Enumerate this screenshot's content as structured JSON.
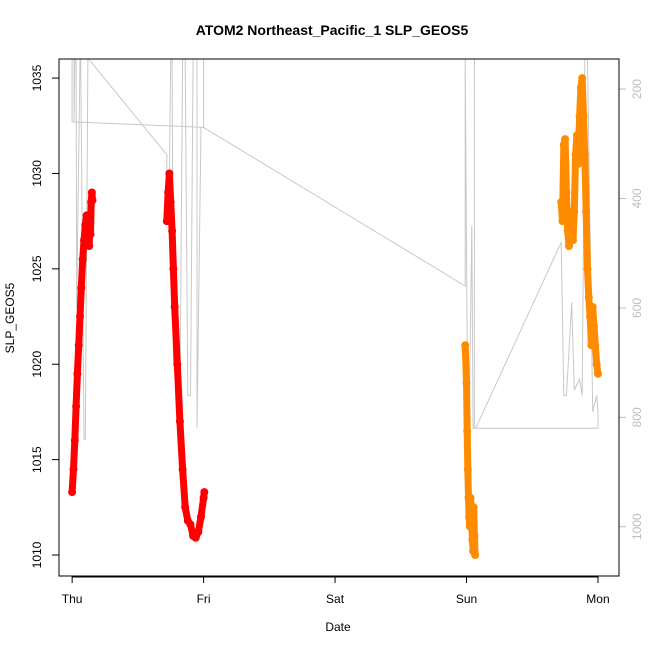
{
  "chart_data": {
    "type": "line",
    "title": "ATOM2 Northeast_Pacific_1 SLP_GEOS5",
    "xlabel": "Date",
    "ylabel": "SLP_GEOS5",
    "x_ticks": [
      "Thu",
      "Fri",
      "Sat",
      "Sun",
      "Mon"
    ],
    "x_range_days": [
      -0.1,
      4.16
    ],
    "ylim": [
      1008.9,
      1036.0
    ],
    "y_ticks": [
      1010,
      1015,
      1020,
      1025,
      1030,
      1035
    ],
    "y2_label": "",
    "y2_ticks": [
      200,
      400,
      600,
      800,
      1000
    ],
    "y2_range_hpa": [
      1090,
      145
    ],
    "grid": false,
    "colors": {
      "series_a": "#ff0000",
      "series_b": "#ff8c00",
      "pressure_trace": "#c8c8c8",
      "frame": "#000000",
      "right_axis": "#bdbdbd"
    },
    "series": [
      {
        "color": "#ff0000",
        "x": [
          0.0,
          0.01,
          0.02,
          0.03,
          0.04,
          0.05,
          0.06,
          0.07,
          0.08,
          0.09,
          0.1,
          0.11,
          0.12,
          0.125,
          0.13,
          0.135,
          0.14,
          0.145,
          0.15,
          0.155
        ],
        "y": [
          1013.3,
          1014.5,
          1016.0,
          1017.8,
          1019.5,
          1021.0,
          1022.5,
          1024.0,
          1025.5,
          1026.5,
          1027.3,
          1027.8,
          1026.5,
          1027.8,
          1026.2,
          1027.5,
          1026.8,
          1028.5,
          1029.0,
          1028.6
        ]
      },
      {
        "color": "#ff0000",
        "x": [
          0.72,
          0.73,
          0.74,
          0.75,
          0.76,
          0.77,
          0.78,
          0.8,
          0.82,
          0.84,
          0.86,
          0.88,
          0.9,
          0.92,
          0.94,
          0.96,
          0.98,
          1.0,
          1.005
        ],
        "y": [
          1027.5,
          1029.0,
          1030.0,
          1028.5,
          1027.0,
          1025.0,
          1023.0,
          1020.0,
          1017.0,
          1014.5,
          1012.5,
          1011.8,
          1011.6,
          1011.0,
          1010.9,
          1011.2,
          1012.0,
          1013.0,
          1013.3
        ]
      },
      {
        "color": "#ff8c00",
        "x": [
          2.99,
          3.0,
          3.005,
          3.01,
          3.015,
          3.02,
          3.025,
          3.03,
          3.035,
          3.04,
          3.045,
          3.05,
          3.055,
          3.06,
          3.065
        ],
        "y": [
          1021.0,
          1019.0,
          1016.5,
          1014.5,
          1013.0,
          1012.0,
          1011.5,
          1013.0,
          1012.5,
          1011.5,
          1010.8,
          1010.2,
          1012.5,
          1011.0,
          1010.0
        ]
      },
      {
        "color": "#ff8c00",
        "x": [
          3.72,
          3.73,
          3.74,
          3.75,
          3.76,
          3.77,
          3.78,
          3.79,
          3.8,
          3.81,
          3.82,
          3.83,
          3.84,
          3.85,
          3.86,
          3.87,
          3.88,
          3.89,
          3.9,
          3.91,
          3.92,
          3.93,
          3.94,
          3.95,
          3.96,
          3.97,
          3.98,
          3.99,
          4.0
        ],
        "y": [
          1028.5,
          1027.5,
          1031.5,
          1031.8,
          1029.0,
          1027.0,
          1026.2,
          1028.0,
          1027.5,
          1026.5,
          1028.0,
          1031.0,
          1032.0,
          1030.5,
          1033.0,
          1034.5,
          1035.0,
          1033.0,
          1031.0,
          1028.0,
          1025.0,
          1023.5,
          1022.5,
          1021.0,
          1023.0,
          1022.0,
          1021.0,
          1020.0,
          1019.5
        ]
      }
    ],
    "pressure_trace": {
      "x": [
        0.0,
        0.0,
        0.015,
        0.02,
        0.03,
        0.035,
        0.06,
        0.065,
        0.09,
        0.1,
        0.12,
        0.125,
        0.72,
        0.72,
        0.74,
        0.75,
        0.76,
        0.77,
        0.8,
        0.81,
        0.82,
        0.84,
        0.86,
        0.88,
        0.9,
        0.92,
        0.95,
        0.95,
        0.98,
        1.0,
        2.99,
        2.99,
        3.01,
        3.02,
        3.04,
        3.05,
        3.06,
        3.07,
        3.72,
        3.74,
        3.76,
        3.8,
        3.82,
        3.86,
        3.88,
        3.9,
        3.92,
        3.96,
        3.99,
        4.0,
        4.0,
        3.06,
        3.06,
        1.0,
        1.0,
        0.015,
        0.015,
        0.1,
        0.1
      ],
      "y_hpa": [
        145,
        260,
        260,
        145,
        145,
        600,
        145,
        145,
        840,
        840,
        145,
        145,
        320,
        360,
        350,
        145,
        145,
        700,
        700,
        780,
        780,
        145,
        145,
        760,
        760,
        145,
        145,
        820,
        270,
        270,
        560,
        145,
        820,
        820,
        450,
        820,
        820,
        820,
        480,
        760,
        760,
        590,
        750,
        730,
        760,
        145,
        145,
        790,
        760,
        790,
        820,
        820,
        145,
        145,
        270,
        260,
        145,
        145,
        145
      ]
    }
  }
}
